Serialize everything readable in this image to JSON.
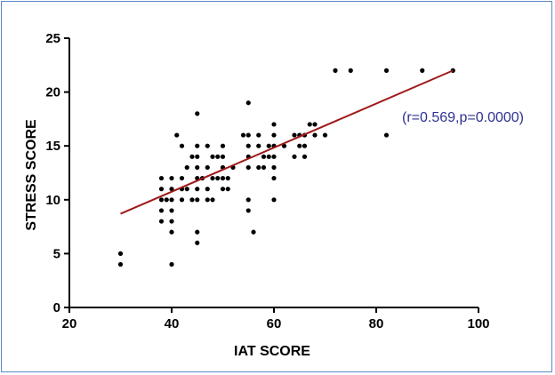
{
  "chart_data": {
    "type": "scatter",
    "title": "",
    "xlabel": "IAT SCORE",
    "ylabel": "STRESS SCORE",
    "xlim": [
      20,
      100
    ],
    "ylim": [
      0,
      25
    ],
    "x_ticks": [
      20,
      40,
      60,
      80,
      100
    ],
    "y_ticks": [
      0,
      5,
      10,
      15,
      20,
      25
    ],
    "grid": false,
    "annotation": "(r=0.569,p=0.0000)",
    "colors": {
      "points": "#000000",
      "regression_line": "#a01818",
      "annotation": "#2e3192",
      "frame": "#5b87c7"
    },
    "regression_line": {
      "x": [
        30,
        95
      ],
      "y": [
        8.7,
        22
      ]
    },
    "points": [
      {
        "x": 30,
        "y": 4
      },
      {
        "x": 30,
        "y": 5
      },
      {
        "x": 38,
        "y": 8
      },
      {
        "x": 38,
        "y": 9
      },
      {
        "x": 38,
        "y": 10
      },
      {
        "x": 38,
        "y": 11
      },
      {
        "x": 38,
        "y": 12
      },
      {
        "x": 39,
        "y": 10
      },
      {
        "x": 40,
        "y": 4
      },
      {
        "x": 40,
        "y": 7
      },
      {
        "x": 40,
        "y": 8
      },
      {
        "x": 40,
        "y": 9
      },
      {
        "x": 40,
        "y": 10
      },
      {
        "x": 40,
        "y": 11
      },
      {
        "x": 40,
        "y": 12
      },
      {
        "x": 41,
        "y": 16
      },
      {
        "x": 42,
        "y": 10
      },
      {
        "x": 42,
        "y": 11
      },
      {
        "x": 42,
        "y": 12
      },
      {
        "x": 42,
        "y": 15
      },
      {
        "x": 43,
        "y": 11
      },
      {
        "x": 43,
        "y": 13
      },
      {
        "x": 44,
        "y": 10
      },
      {
        "x": 44,
        "y": 14
      },
      {
        "x": 45,
        "y": 6
      },
      {
        "x": 45,
        "y": 7
      },
      {
        "x": 45,
        "y": 10
      },
      {
        "x": 45,
        "y": 11
      },
      {
        "x": 45,
        "y": 12
      },
      {
        "x": 45,
        "y": 13
      },
      {
        "x": 45,
        "y": 14
      },
      {
        "x": 45,
        "y": 15
      },
      {
        "x": 45,
        "y": 18
      },
      {
        "x": 46,
        "y": 12
      },
      {
        "x": 47,
        "y": 10
      },
      {
        "x": 47,
        "y": 11
      },
      {
        "x": 47,
        "y": 13
      },
      {
        "x": 47,
        "y": 15
      },
      {
        "x": 48,
        "y": 10
      },
      {
        "x": 48,
        "y": 12
      },
      {
        "x": 48,
        "y": 14
      },
      {
        "x": 49,
        "y": 12
      },
      {
        "x": 49,
        "y": 14
      },
      {
        "x": 50,
        "y": 11
      },
      {
        "x": 50,
        "y": 12
      },
      {
        "x": 50,
        "y": 13
      },
      {
        "x": 50,
        "y": 14
      },
      {
        "x": 50,
        "y": 15
      },
      {
        "x": 51,
        "y": 11
      },
      {
        "x": 51,
        "y": 12
      },
      {
        "x": 52,
        "y": 13
      },
      {
        "x": 54,
        "y": 16
      },
      {
        "x": 55,
        "y": 9
      },
      {
        "x": 55,
        "y": 10
      },
      {
        "x": 55,
        "y": 13
      },
      {
        "x": 55,
        "y": 14
      },
      {
        "x": 55,
        "y": 15
      },
      {
        "x": 55,
        "y": 16
      },
      {
        "x": 55,
        "y": 19
      },
      {
        "x": 56,
        "y": 7
      },
      {
        "x": 57,
        "y": 13
      },
      {
        "x": 57,
        "y": 15
      },
      {
        "x": 57,
        "y": 16
      },
      {
        "x": 58,
        "y": 13
      },
      {
        "x": 58,
        "y": 14
      },
      {
        "x": 59,
        "y": 14
      },
      {
        "x": 59,
        "y": 15
      },
      {
        "x": 60,
        "y": 10
      },
      {
        "x": 60,
        "y": 12
      },
      {
        "x": 60,
        "y": 13
      },
      {
        "x": 60,
        "y": 14
      },
      {
        "x": 60,
        "y": 15
      },
      {
        "x": 60,
        "y": 16
      },
      {
        "x": 60,
        "y": 17
      },
      {
        "x": 62,
        "y": 15
      },
      {
        "x": 64,
        "y": 14
      },
      {
        "x": 64,
        "y": 16
      },
      {
        "x": 65,
        "y": 15
      },
      {
        "x": 65,
        "y": 16
      },
      {
        "x": 66,
        "y": 14
      },
      {
        "x": 66,
        "y": 15
      },
      {
        "x": 66,
        "y": 16
      },
      {
        "x": 67,
        "y": 17
      },
      {
        "x": 68,
        "y": 16
      },
      {
        "x": 68,
        "y": 17
      },
      {
        "x": 70,
        "y": 16
      },
      {
        "x": 72,
        "y": 22
      },
      {
        "x": 75,
        "y": 22
      },
      {
        "x": 82,
        "y": 16
      },
      {
        "x": 82,
        "y": 22
      },
      {
        "x": 89,
        "y": 22
      },
      {
        "x": 95,
        "y": 22
      }
    ]
  }
}
